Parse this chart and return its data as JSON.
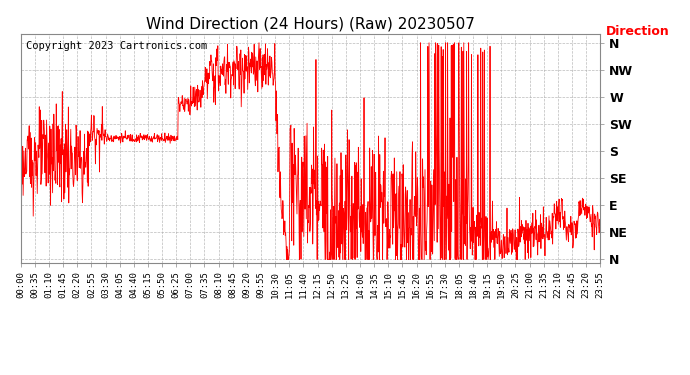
{
  "title": "Wind Direction (24 Hours) (Raw) 20230507",
  "copyright": "Copyright 2023 Cartronics.com",
  "legend_label": "Direction",
  "legend_color": "#ff0000",
  "line_color": "#ff0000",
  "background_color": "#ffffff",
  "grid_color": "#aaaaaa",
  "ytick_labels": [
    "N",
    "NE",
    "E",
    "SE",
    "S",
    "SW",
    "W",
    "NW",
    "N"
  ],
  "ytick_values": [
    0,
    45,
    90,
    135,
    180,
    225,
    270,
    315,
    360
  ],
  "xlim_minutes": [
    0,
    1435
  ],
  "ylim": [
    -5,
    375
  ],
  "title_fontsize": 11,
  "copyright_fontsize": 7.5,
  "xtick_fontsize": 6.5,
  "ytick_fontsize": 9,
  "legend_fontsize": 9,
  "xtick_every": 35
}
